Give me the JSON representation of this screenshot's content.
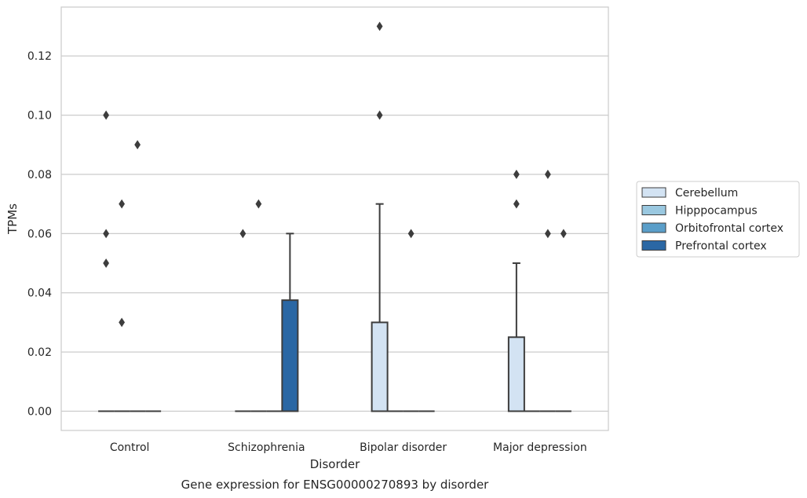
{
  "caption": "Gene expression for ENSG00000270893 by disorder",
  "chart_data": {
    "type": "box",
    "xlabel": "Disorder",
    "ylabel": "TPMs",
    "ylim": [
      -0.0065,
      0.1365
    ],
    "yticks": [
      "0.00",
      "0.02",
      "0.04",
      "0.06",
      "0.08",
      "0.10",
      "0.12"
    ],
    "grid": "horizontal",
    "legend_position": "right",
    "categories": [
      "Control",
      "Schizophrenia",
      "Bipolar disorder",
      "Major depression"
    ],
    "series": [
      {
        "name": "Cerebellum",
        "color": "#d3e3f3",
        "boxes": [
          {
            "q1": 0,
            "median": 0,
            "q3": 0,
            "whislo": 0,
            "whishi": 0,
            "fliers": [
              0.06,
              0.05,
              0.1
            ]
          },
          {
            "q1": 0,
            "median": 0,
            "q3": 0,
            "whislo": 0,
            "whishi": 0,
            "fliers": [
              0.06
            ]
          },
          {
            "q1": 0,
            "median": 0,
            "q3": 0.03,
            "whislo": 0,
            "whishi": 0.07,
            "fliers": [
              0.13,
              0.1
            ]
          },
          {
            "q1": 0,
            "median": 0,
            "q3": 0.025,
            "whislo": 0,
            "whishi": 0.05,
            "fliers": [
              0.08,
              0.07
            ]
          }
        ]
      },
      {
        "name": "Hipppocampus",
        "color": "#9ac8e0",
        "boxes": [
          {
            "q1": 0,
            "median": 0,
            "q3": 0,
            "whislo": 0,
            "whishi": 0,
            "fliers": [
              0.07,
              0.03
            ]
          },
          {
            "q1": 0,
            "median": 0,
            "q3": 0,
            "whislo": 0,
            "whishi": 0,
            "fliers": [
              0.07
            ]
          },
          {
            "q1": 0,
            "median": 0,
            "q3": 0,
            "whislo": 0,
            "whishi": 0,
            "fliers": []
          },
          {
            "q1": 0,
            "median": 0,
            "q3": 0,
            "whislo": 0,
            "whishi": 0,
            "fliers": []
          }
        ]
      },
      {
        "name": "Orbitofrontal cortex",
        "color": "#5a9ec9",
        "boxes": [
          {
            "q1": 0,
            "median": 0,
            "q3": 0,
            "whislo": 0,
            "whishi": 0,
            "fliers": [
              0.09
            ]
          },
          {
            "q1": 0,
            "median": 0,
            "q3": 0,
            "whislo": 0,
            "whishi": 0,
            "fliers": []
          },
          {
            "q1": 0,
            "median": 0,
            "q3": 0,
            "whislo": 0,
            "whishi": 0,
            "fliers": [
              0.06
            ]
          },
          {
            "q1": 0,
            "median": 0,
            "q3": 0,
            "whislo": 0,
            "whishi": 0,
            "fliers": [
              0.08,
              0.06
            ]
          }
        ]
      },
      {
        "name": "Prefrontal cortex",
        "color": "#2a67a4",
        "boxes": [
          {
            "q1": 0,
            "median": 0,
            "q3": 0,
            "whislo": 0,
            "whishi": 0,
            "fliers": []
          },
          {
            "q1": 0,
            "median": 0,
            "q3": 0.0375,
            "whislo": 0,
            "whishi": 0.06,
            "fliers": []
          },
          {
            "q1": 0,
            "median": 0,
            "q3": 0,
            "whislo": 0,
            "whishi": 0,
            "fliers": []
          },
          {
            "q1": 0,
            "median": 0,
            "q3": 0,
            "whislo": 0,
            "whishi": 0,
            "fliers": [
              0.06
            ]
          }
        ]
      }
    ]
  }
}
